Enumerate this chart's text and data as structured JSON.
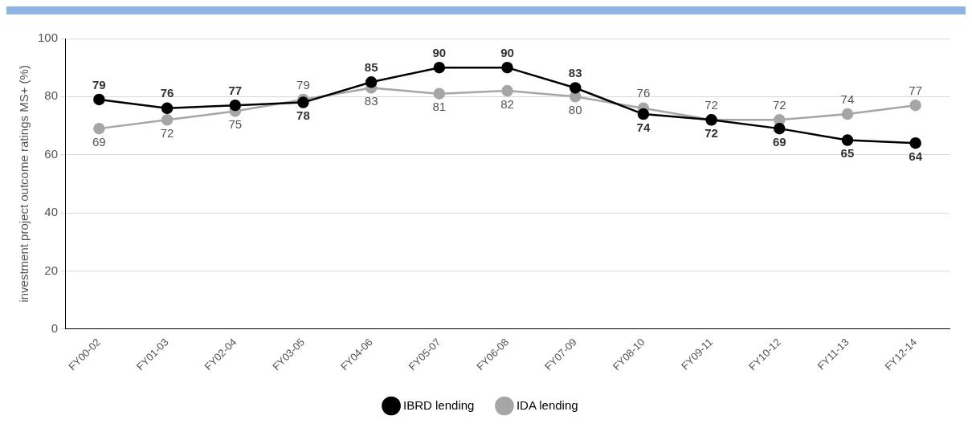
{
  "chart_data": {
    "type": "line",
    "ylabel": "investment project outcome ratings MS+ (%)",
    "categories": [
      "FY00-02",
      "FY01-03",
      "FY02-04",
      "FY03-05",
      "FY04-06",
      "FY05-07",
      "FY06-08",
      "FY07-09",
      "FY08-10",
      "FY09-11",
      "FY10-12",
      "FY11-13",
      "FY12-14"
    ],
    "series": [
      {
        "name": "IBRD lending",
        "color": "#000000",
        "values": [
          79,
          76,
          77,
          78,
          85,
          90,
          90,
          83,
          74,
          72,
          69,
          65,
          64
        ]
      },
      {
        "name": "IDA lending",
        "color": "#a6a6a6",
        "values": [
          69,
          72,
          75,
          79,
          83,
          81,
          82,
          80,
          76,
          72,
          72,
          74,
          77
        ]
      }
    ],
    "ylim": [
      0,
      100
    ],
    "yticks": [
      0,
      20,
      40,
      60,
      80,
      100
    ],
    "grid": "y",
    "legend": "bottom",
    "marker": "circle",
    "line_style": "solid",
    "data_labels": true
  }
}
